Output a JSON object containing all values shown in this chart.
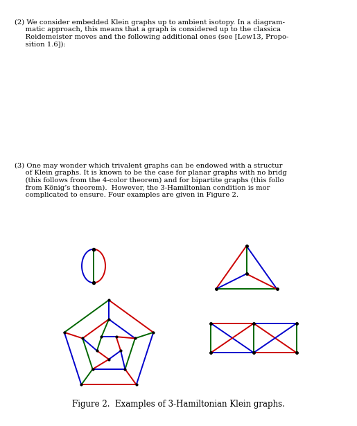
{
  "red": "#cc0000",
  "green": "#006600",
  "blue": "#0000cc",
  "lw": 1.4,
  "caption": "Figure 2.  Examples of 3-Hamiltonian Klein graphs.",
  "para2": "(2) We consider embedded Klein graphs up to ambient isotopy. In a diagram-\n     matic approach, this means that a graph is considered up to the classica\n     Reidemeister moves and the following additional ones (see [Lew13, Propo-\n     sition 1.6]):",
  "para3": "(3) One may wonder which trivalent graphs can be endowed with a structur\n     of Klein graphs. It is known to be the case for planar graphs with no bridg\n     (this follows from the 4-color theorem) and for bipartite graphs (this follo\n     from König’s theorem).  However, the 3-Hamiltonian condition is mor\n     complicated to ensure. Four examples are given in Figure 2."
}
